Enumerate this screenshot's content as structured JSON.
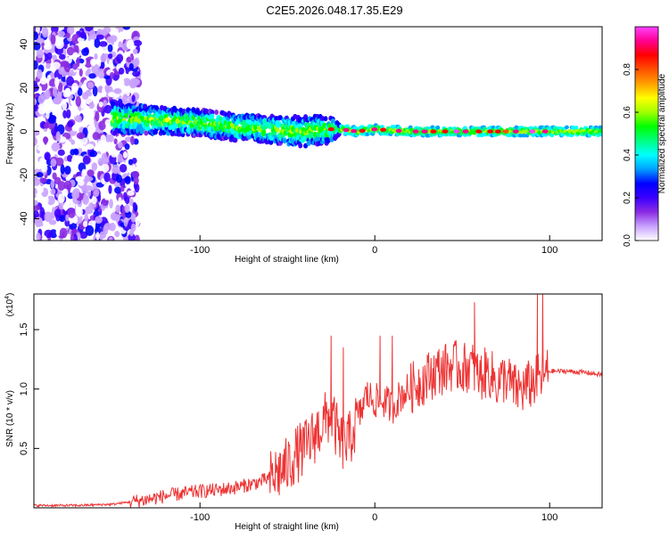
{
  "title": "C2E5.2026.048.17.35.E29",
  "chart_data": [
    {
      "type": "heatmap",
      "title": "C2E5.2026.048.17.35.E29",
      "xlabel": "Height of straight line (km)",
      "ylabel": "Frequency (Hz)",
      "xlim": [
        -195,
        130
      ],
      "ylim": [
        -50,
        48
      ],
      "x_ticks": [
        -100,
        0,
        100
      ],
      "x_tick_labels": [
        "-100",
        "0",
        "100"
      ],
      "y_ticks": [
        -40,
        -20,
        0,
        20,
        40
      ],
      "y_tick_labels": [
        "-40",
        "-20",
        "0",
        "20",
        "40"
      ],
      "description_of_ridge": {
        "x": [
          -150,
          -120,
          -100,
          -80,
          -60,
          -40,
          -25,
          -20,
          -10,
          0,
          20,
          40,
          60,
          80,
          100,
          130
        ],
        "center_freq": [
          6,
          5,
          4,
          2,
          1,
          0,
          1,
          1,
          0,
          1,
          0,
          0,
          0,
          0,
          0,
          0
        ],
        "half_width": [
          7,
          6,
          6,
          6,
          6,
          7,
          6,
          2,
          2,
          2,
          2,
          2,
          2,
          2,
          2,
          2
        ]
      },
      "colorbar": {
        "label": "Normalized spectral amplitude",
        "range": [
          0,
          1
        ],
        "ticks": [
          0.0,
          0.2,
          0.4,
          0.6,
          0.8
        ],
        "tick_labels": [
          "0.0",
          "0.2",
          "0.4",
          "0.6",
          "0.8"
        ],
        "colors": [
          "#ffffff",
          "#c9a2ff",
          "#8a2be2",
          "#3b00ff",
          "#0000ff",
          "#00a0ff",
          "#00ffff",
          "#00ff80",
          "#00ff00",
          "#a0ff00",
          "#ffff00",
          "#ffa000",
          "#ff5000",
          "#ff0000",
          "#ff0090",
          "#ff40ff"
        ]
      }
    },
    {
      "type": "line",
      "xlabel": "Height of straight line (km)",
      "ylabel": "SNR (10 * v/v)",
      "y_multiplier_label": "(x10",
      "y_multiplier_exp": "4",
      "xlim": [
        -195,
        130
      ],
      "ylim": [
        0,
        1.8
      ],
      "x_ticks": [
        -100,
        0,
        100
      ],
      "x_tick_labels": [
        "-100",
        "0",
        "100"
      ],
      "y_ticks": [
        0.5,
        1.0,
        1.5
      ],
      "y_tick_labels": [
        "0.5",
        "1.0",
        "1.5"
      ],
      "series": [
        {
          "name": "SNR",
          "color": "#ee3333",
          "x": [
            -195,
            -170,
            -150,
            -140,
            -130,
            -120,
            -110,
            -100,
            -90,
            -80,
            -70,
            -60,
            -50,
            -45,
            -40,
            -35,
            -30,
            -25,
            -20,
            -15,
            -10,
            -8,
            -5,
            0,
            5,
            10,
            15,
            20,
            25,
            30,
            35,
            40,
            45,
            50,
            55,
            60,
            65,
            70,
            75,
            80,
            85,
            90,
            95,
            100,
            110,
            120,
            130
          ],
          "y": [
            0.02,
            0.02,
            0.03,
            0.05,
            0.07,
            0.1,
            0.12,
            0.14,
            0.15,
            0.17,
            0.2,
            0.25,
            0.35,
            0.45,
            0.5,
            0.6,
            0.7,
            0.8,
            0.55,
            0.55,
            0.75,
            0.8,
            0.95,
            0.9,
            0.9,
            0.85,
            0.95,
            1.0,
            1.05,
            1.1,
            1.15,
            1.17,
            1.2,
            1.17,
            1.2,
            1.1,
            1.15,
            1.05,
            1.1,
            1.0,
            1.0,
            1.05,
            1.1,
            1.15,
            1.15,
            1.14,
            1.12
          ]
        }
      ],
      "spikes": [
        {
          "x": -25,
          "y": 1.45
        },
        {
          "x": -18,
          "y": 1.35
        },
        {
          "x": 3,
          "y": 1.45
        },
        {
          "x": 10,
          "y": 1.45
        },
        {
          "x": 57,
          "y": 1.73
        },
        {
          "x": 93,
          "y": 1.8
        },
        {
          "x": 96,
          "y": 1.85
        }
      ]
    }
  ]
}
